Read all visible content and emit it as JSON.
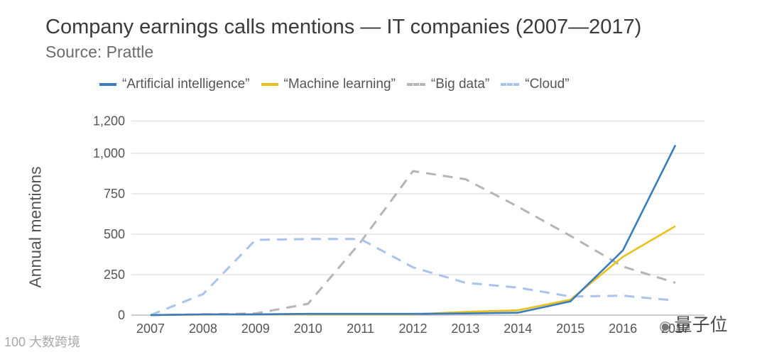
{
  "title": "Company earnings calls mentions — IT companies (2007—2017)",
  "subtitle": "Source: Prattle",
  "legend": [
    {
      "label": "“Artificial intelligence”",
      "color": "#3b7bbf",
      "style": "solid"
    },
    {
      "label": "“Machine learning”",
      "color": "#e8c21b",
      "style": "solid"
    },
    {
      "label": "“Big data”",
      "color": "#b5b5b5",
      "style": "dashed"
    },
    {
      "label": "“Cloud”",
      "color": "#a9c3ec",
      "style": "dashed"
    }
  ],
  "watermarks": {
    "left_logo": "100",
    "left": "大数跨境",
    "right": "量子位",
    "right_icon": "wechat-icon"
  },
  "chart_data": {
    "type": "line",
    "title": "Company earnings calls mentions — IT companies (2007—2017)",
    "subtitle": "Source: Prattle",
    "xlabel": "",
    "ylabel": "Annual mentions",
    "categories": [
      "2007",
      "2008",
      "2009",
      "2010",
      "2011",
      "2012",
      "2013",
      "2014",
      "2015",
      "2016",
      "2017"
    ],
    "y_ticks": [
      0,
      250,
      500,
      750,
      1000,
      1200
    ],
    "y_tick_labels": [
      "0",
      "250",
      "500",
      "750",
      "1,000",
      "1,200"
    ],
    "ylim": [
      0,
      1200
    ],
    "grid": true,
    "legend_position": "top",
    "series": [
      {
        "name": "“Artificial intelligence”",
        "color": "#3b7bbf",
        "dash": false,
        "values": [
          0,
          5,
          5,
          8,
          8,
          8,
          10,
          15,
          85,
          400,
          1050
        ]
      },
      {
        "name": "“Machine learning”",
        "color": "#e8c21b",
        "dash": false,
        "values": [
          0,
          3,
          5,
          5,
          5,
          5,
          20,
          30,
          95,
          360,
          550
        ]
      },
      {
        "name": "“Big data”",
        "color": "#b5b5b5",
        "dash": true,
        "values": [
          0,
          5,
          10,
          70,
          450,
          890,
          840,
          670,
          490,
          300,
          200
        ]
      },
      {
        "name": "“Cloud”",
        "color": "#a9c3ec",
        "dash": true,
        "values": [
          0,
          130,
          465,
          470,
          470,
          295,
          200,
          170,
          115,
          120,
          90
        ]
      }
    ]
  }
}
